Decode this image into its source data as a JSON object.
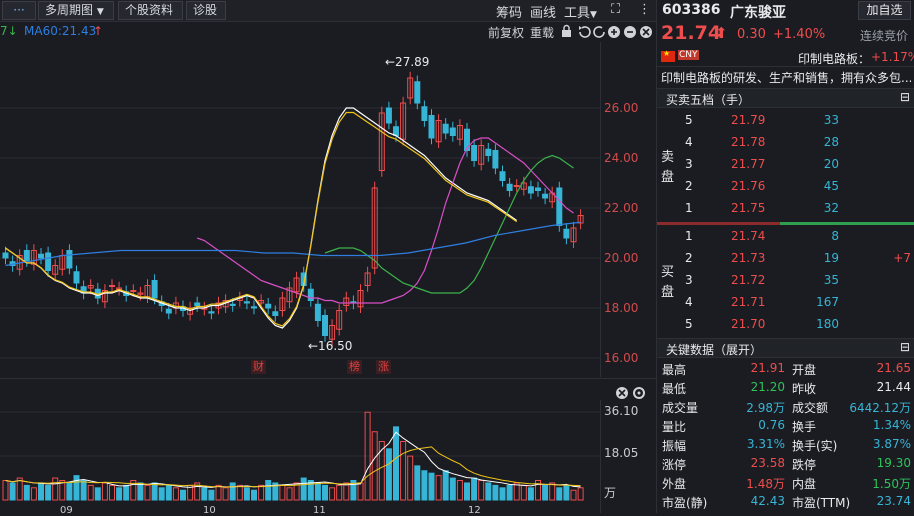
{
  "toolbar": {
    "menu_icon": "···",
    "period": "多周期图",
    "period_arrow": "▼",
    "stock_info": "个股资料",
    "diagnose": "诊股",
    "chip": "筹码",
    "draw": "画线",
    "tools": "工具",
    "tools_arrow": "▼",
    "expand_icon": "⛶",
    "more_icon": "⋮"
  },
  "ma_bar": {
    "lead": "7↓",
    "ma60": "MA60:21.43",
    "ma60_arrow": "↑",
    "fuquan": "前复权",
    "overlay": "重载"
  },
  "chart": {
    "y_ticks": [
      "26.00",
      "24.00",
      "22.00",
      "20.00",
      "18.00",
      "16.00"
    ],
    "high_label": "←27.89",
    "low_label": "←16.50",
    "events": [
      "财",
      "榜",
      "涨"
    ],
    "vol_ticks": [
      "36.10",
      "18.05",
      "万"
    ],
    "x_labels": [
      "09",
      "10",
      "11",
      "12"
    ]
  },
  "chart_data": {
    "type": "candlestick",
    "ylim": [
      16,
      28
    ],
    "y_ticks": [
      26,
      24,
      22,
      20,
      18,
      16
    ],
    "high": 27.89,
    "low": 16.5,
    "ma60_last": 21.43,
    "volume_ticks": [
      36.1,
      18.05
    ],
    "volume_unit": "万",
    "x_labels": [
      "09",
      "10",
      "11",
      "12"
    ],
    "closes": [
      20.0,
      19.7,
      20.1,
      19.9,
      20.3,
      20.0,
      19.5,
      19.7,
      20.1,
      19.6,
      19.0,
      18.6,
      18.9,
      18.4,
      18.7,
      18.9,
      18.8,
      18.5,
      18.7,
      18.6,
      18.9,
      18.4,
      18.1,
      17.8,
      18.2,
      17.9,
      18.0,
      18.1,
      18.0,
      17.8,
      18.2,
      18.3,
      18.1,
      18.4,
      18.2,
      18.0,
      18.3,
      18.0,
      17.7,
      18.4,
      18.8,
      19.2,
      18.9,
      18.3,
      17.5,
      16.9,
      17.3,
      17.9,
      18.4,
      18.2,
      18.7,
      19.4,
      22.8,
      25.8,
      25.4,
      24.9,
      26.2,
      27.2,
      26.2,
      25.5,
      24.8,
      25.5,
      25.0,
      24.9,
      25.3,
      24.3,
      23.9,
      24.5,
      24.1,
      23.6,
      23.1,
      22.7,
      22.9,
      23.0,
      22.6,
      22.7,
      22.4,
      22.6,
      21.3,
      20.8,
      21.2,
      21.7
    ],
    "ma_fast": [
      20.4,
      20.2,
      20.0,
      19.8,
      19.8,
      19.6,
      19.3,
      19.1,
      19.0,
      18.8,
      18.7,
      18.6,
      18.6,
      18.5,
      18.6,
      18.6,
      18.7,
      18.6,
      18.5,
      18.4,
      18.4,
      18.3,
      18.2,
      18.1,
      18.0,
      18.0,
      17.9,
      18.0,
      18.0,
      18.1,
      18.1,
      18.2,
      18.3,
      18.4,
      18.5,
      18.4,
      18.0,
      17.6,
      17.3,
      17.2,
      17.5,
      18.0,
      18.9,
      20.5,
      22.3,
      23.9,
      24.9,
      25.6,
      26.0,
      26.0,
      25.8,
      25.6,
      25.4,
      25.2,
      25.0,
      24.9,
      24.7,
      24.5,
      24.3,
      24.1,
      23.8,
      23.5,
      23.2,
      23.0,
      22.8,
      22.6,
      22.5,
      22.4,
      22.3,
      22.1,
      21.9,
      21.7,
      21.5
    ],
    "ma_mid": [
      20.8,
      20.7,
      20.5,
      20.3,
      20.1,
      19.9,
      19.7,
      19.5,
      19.3,
      19.1,
      19.0,
      18.9,
      18.8,
      18.7,
      18.6,
      18.5,
      18.4,
      18.4,
      18.3,
      18.3,
      18.2,
      18.2,
      18.2,
      18.2,
      18.2,
      18.2,
      18.2,
      18.3,
      18.4,
      18.5,
      18.7,
      19.0,
      19.5,
      20.3,
      21.2,
      22.2,
      23.0,
      23.8,
      24.4,
      24.7,
      24.8,
      24.8,
      24.6,
      24.4,
      24.2,
      24.0,
      23.8,
      23.5,
      23.2,
      22.9,
      22.6,
      22.3,
      22.0,
      21.8
    ],
    "ma_slow": [
      20.2,
      20.3,
      20.4,
      20.4,
      20.4,
      20.3,
      20.1,
      19.9,
      19.6,
      19.4,
      19.2,
      19.0,
      18.9,
      18.8,
      18.7,
      18.6,
      18.6,
      18.6,
      18.6,
      18.6,
      18.8,
      19.1,
      19.6,
      20.2,
      20.8,
      21.4,
      22.0,
      22.6,
      23.1,
      23.5,
      23.8,
      24.0,
      24.1,
      24.0,
      23.8,
      23.6
    ],
    "ma60": [
      19.7,
      19.9,
      20.1,
      20.2,
      20.3,
      20.3,
      20.3,
      20.3,
      20.3,
      20.2,
      20.2,
      20.1,
      20.1,
      20.1,
      20.2,
      20.4,
      20.6,
      20.9,
      21.1,
      21.3,
      21.43
    ],
    "volumes": [
      8,
      7,
      9,
      6,
      5,
      7,
      6,
      9,
      8,
      7,
      10,
      8,
      6,
      5,
      7,
      6,
      5,
      6,
      8,
      7,
      6,
      7,
      5,
      6,
      5,
      4,
      6,
      7,
      5,
      4,
      6,
      5,
      7,
      6,
      5,
      4,
      6,
      8,
      7,
      6,
      5,
      7,
      9,
      8,
      7,
      6,
      5,
      6,
      7,
      8,
      7,
      36,
      28,
      24,
      21,
      30,
      24,
      18,
      14,
      12,
      11,
      10,
      12,
      9,
      8,
      7,
      9,
      8,
      7,
      6,
      5,
      6,
      7,
      6,
      5,
      8,
      6,
      7,
      5,
      6,
      4,
      5
    ]
  },
  "quote": {
    "code": "603386",
    "name": "广东骏亚",
    "add_btn": "加自选",
    "price": "21.74",
    "arrow": "⬆",
    "change": "0.30",
    "pct": "+1.40%",
    "auction": "连续竞价",
    "currency": "CNY",
    "sector": "印制电路板：",
    "sector_pct": "+1.17%",
    "desc": "印制电路板的研发、生产和销售，拥有众多包..."
  },
  "book": {
    "title": "买卖五档（手）",
    "sell_label": [
      "卖",
      "盘"
    ],
    "buy_label": [
      "买",
      "盘"
    ],
    "asks": [
      {
        "lvl": "5",
        "price": "21.79",
        "vol": "33"
      },
      {
        "lvl": "4",
        "price": "21.78",
        "vol": "28"
      },
      {
        "lvl": "3",
        "price": "21.77",
        "vol": "20"
      },
      {
        "lvl": "2",
        "price": "21.76",
        "vol": "45"
      },
      {
        "lvl": "1",
        "price": "21.75",
        "vol": "32"
      }
    ],
    "bids": [
      {
        "lvl": "1",
        "price": "21.74",
        "vol": "8",
        "chg": ""
      },
      {
        "lvl": "2",
        "price": "21.73",
        "vol": "19",
        "chg": "+7"
      },
      {
        "lvl": "3",
        "price": "21.72",
        "vol": "35",
        "chg": ""
      },
      {
        "lvl": "4",
        "price": "21.71",
        "vol": "167",
        "chg": ""
      },
      {
        "lvl": "5",
        "price": "21.70",
        "vol": "180",
        "chg": ""
      }
    ]
  },
  "key": {
    "title": "关键数据（展开）",
    "rows": [
      [
        "最高",
        "21.91",
        "开盘",
        "21.65"
      ],
      [
        "最低",
        "21.20",
        "昨收",
        "21.44"
      ],
      [
        "成交量",
        "2.98万",
        "成交额",
        "6442.12万"
      ],
      [
        "量比",
        "0.76",
        "换手",
        "1.34%"
      ],
      [
        "振幅",
        "3.31%",
        "换手(实)",
        "3.87%"
      ],
      [
        "涨停",
        "23.58",
        "跌停",
        "19.30"
      ],
      [
        "外盘",
        "1.48万",
        "内盘",
        "1.50万"
      ],
      [
        "市盈(静)",
        "42.43",
        "市盈(TTM)",
        "23.74"
      ]
    ]
  },
  "colors": {
    "up": "#ee4d4d",
    "down": "#36b5d6",
    "ma_white": "#ffffff",
    "ma_yellow": "#f0c419",
    "ma_pink": "#d94fc8",
    "ma_green": "#3cb34a",
    "ma60": "#2f7ee0"
  }
}
